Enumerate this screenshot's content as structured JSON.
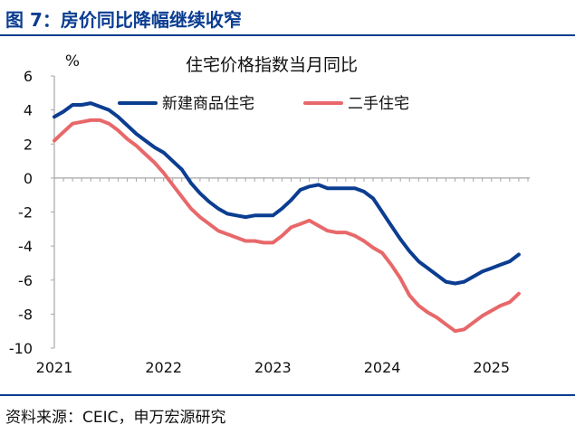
{
  "figure": {
    "title": "图 7：房价同比降幅继续收窄",
    "source": "资料来源：CEIC，申万宏源研究"
  },
  "colors": {
    "brand": "#0b3d91",
    "axis": "#a6a6a6",
    "text": "#111111"
  },
  "chart_data": {
    "type": "line",
    "title": "住宅价格指数当月同比",
    "unit": "%",
    "xlabel": "",
    "ylabel": "%",
    "ylim": [
      -10,
      6
    ],
    "yticks": [
      6,
      4,
      2,
      0,
      -2,
      -4,
      -6,
      -8,
      -10
    ],
    "xlim": [
      2021.0,
      2025.35
    ],
    "xticks": [
      2021,
      2022,
      2023,
      2024,
      2025
    ],
    "xtick_labels": [
      "2021",
      "2022",
      "2023",
      "2024",
      "2025"
    ],
    "grid": false,
    "legend_position": "top-right",
    "series": [
      {
        "name": "新建商品住宅",
        "color": "#0b3d91",
        "x": [
          2021.0,
          2021.083,
          2021.167,
          2021.25,
          2021.333,
          2021.417,
          2021.5,
          2021.583,
          2021.667,
          2021.75,
          2021.833,
          2021.917,
          2022.0,
          2022.083,
          2022.167,
          2022.25,
          2022.333,
          2022.417,
          2022.5,
          2022.583,
          2022.667,
          2022.75,
          2022.833,
          2022.917,
          2023.0,
          2023.083,
          2023.167,
          2023.25,
          2023.333,
          2023.417,
          2023.5,
          2023.583,
          2023.667,
          2023.75,
          2023.833,
          2023.917,
          2024.0,
          2024.083,
          2024.167,
          2024.25,
          2024.333,
          2024.417,
          2024.5,
          2024.583,
          2024.667,
          2024.75,
          2024.833,
          2024.917,
          2025.0,
          2025.083,
          2025.167,
          2025.25
        ],
        "values": [
          3.6,
          3.9,
          4.3,
          4.3,
          4.4,
          4.2,
          4.0,
          3.6,
          3.1,
          2.6,
          2.2,
          1.8,
          1.5,
          1.0,
          0.5,
          -0.3,
          -0.9,
          -1.4,
          -1.8,
          -2.1,
          -2.2,
          -2.3,
          -2.2,
          -2.2,
          -2.2,
          -1.8,
          -1.3,
          -0.7,
          -0.5,
          -0.4,
          -0.6,
          -0.6,
          -0.6,
          -0.6,
          -0.8,
          -1.2,
          -2.0,
          -2.8,
          -3.6,
          -4.3,
          -4.9,
          -5.3,
          -5.7,
          -6.1,
          -6.2,
          -6.1,
          -5.8,
          -5.5,
          -5.3,
          -5.1,
          -4.9,
          -4.5
        ]
      },
      {
        "name": "二手住宅",
        "color": "#e8686a",
        "x": [
          2021.0,
          2021.083,
          2021.167,
          2021.25,
          2021.333,
          2021.417,
          2021.5,
          2021.583,
          2021.667,
          2021.75,
          2021.833,
          2021.917,
          2022.0,
          2022.083,
          2022.167,
          2022.25,
          2022.333,
          2022.417,
          2022.5,
          2022.583,
          2022.667,
          2022.75,
          2022.833,
          2022.917,
          2023.0,
          2023.083,
          2023.167,
          2023.25,
          2023.333,
          2023.417,
          2023.5,
          2023.583,
          2023.667,
          2023.75,
          2023.833,
          2023.917,
          2024.0,
          2024.083,
          2024.167,
          2024.25,
          2024.333,
          2024.417,
          2024.5,
          2024.583,
          2024.667,
          2024.75,
          2024.833,
          2024.917,
          2025.0,
          2025.083,
          2025.167,
          2025.25
        ],
        "values": [
          2.2,
          2.7,
          3.2,
          3.3,
          3.4,
          3.4,
          3.2,
          2.8,
          2.3,
          1.9,
          1.4,
          0.9,
          0.3,
          -0.4,
          -1.1,
          -1.8,
          -2.3,
          -2.7,
          -3.1,
          -3.3,
          -3.5,
          -3.7,
          -3.7,
          -3.8,
          -3.8,
          -3.4,
          -2.9,
          -2.7,
          -2.5,
          -2.8,
          -3.1,
          -3.2,
          -3.2,
          -3.4,
          -3.7,
          -4.1,
          -4.4,
          -5.1,
          -5.9,
          -6.9,
          -7.5,
          -7.9,
          -8.2,
          -8.6,
          -9.0,
          -8.9,
          -8.5,
          -8.1,
          -7.8,
          -7.5,
          -7.3,
          -6.8
        ]
      }
    ]
  }
}
